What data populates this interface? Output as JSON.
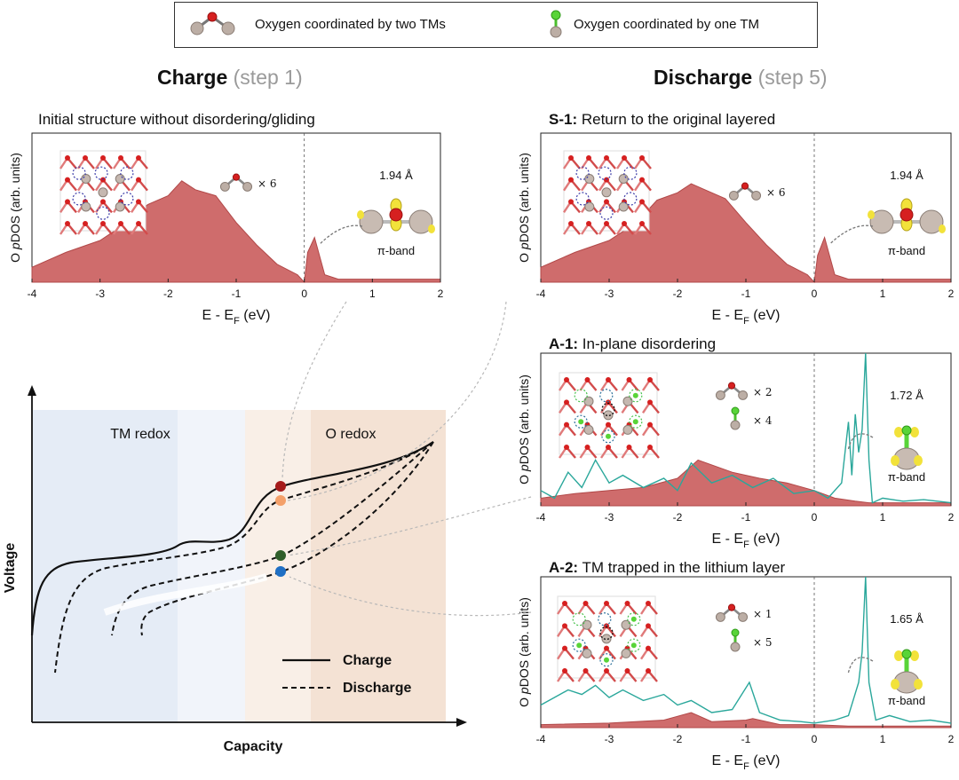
{
  "legend": {
    "item1": "Oxygen coordinated by two TMs",
    "item2": "Oxygen coordinated by one TM"
  },
  "left_heading": {
    "main": "Charge",
    "step": "(step 1)"
  },
  "right_heading": {
    "main": "Discharge",
    "step": "(step 5)"
  },
  "panel_initial": {
    "title": "Initial structure without disordering/gliding",
    "bond": "1.94 Å",
    "band": "π-band",
    "mult1": "× 6"
  },
  "panel_s1": {
    "tag": "S-1:",
    "title": " Return to the original layered",
    "bond": "1.94 Å",
    "band": "π-band",
    "mult1": "× 6"
  },
  "panel_a1": {
    "tag": "A-1:",
    "title": " In-plane disordering",
    "bond": "1.72 Å",
    "band": "π-band",
    "mult1": "× 2",
    "mult2": "× 4"
  },
  "panel_a2": {
    "tag": "A-2:",
    "title": " TM trapped in the lithium layer",
    "bond": "1.65 Å",
    "band": "π-band",
    "mult1": "× 1",
    "mult2": "× 5"
  },
  "axis": {
    "ylabel_pre": "O ",
    "ylabel_it": "p",
    "ylabel_post": "DOS (arb. units)",
    "xlabel_pre": "E - E",
    "xlabel_sub": "F",
    "xlabel_post": " (eV)",
    "ticks": [
      "-4",
      "-3",
      "-2",
      "-1",
      "0",
      "1",
      "2"
    ]
  },
  "voltage_plot": {
    "ylabel": "Voltage",
    "xlabel": "Capacity",
    "region_left": "TM redox",
    "region_right": "O redox",
    "legend_charge": "Charge",
    "legend_discharge": "Discharge"
  },
  "colors": {
    "dos_fill": "#cf6c6c",
    "dos_stroke": "#b14848",
    "teal_line": "#2aa79b",
    "marker_red": "#a51b1b",
    "marker_orange": "#f4a06a",
    "marker_green": "#2f5e2a",
    "marker_blue": "#1f6fc4",
    "region_left": "#e5ecf6",
    "region_right": "#f4e2d4"
  },
  "chart_data": [
    {
      "type": "area",
      "title": "Initial structure without disordering/gliding",
      "xlabel": "E - EF (eV)",
      "ylabel": "O pDOS (arb. units)",
      "xlim": [
        -4,
        2
      ],
      "series": [
        {
          "name": "O pDOS",
          "x": [
            -4,
            -3.5,
            -3,
            -2.6,
            -2.3,
            -2,
            -1.8,
            -1.6,
            -1.3,
            -1.0,
            -0.7,
            -0.4,
            -0.1,
            0,
            0.05,
            0.15,
            0.3,
            0.5,
            1,
            1.5,
            2
          ],
          "values": [
            0.1,
            0.2,
            0.28,
            0.4,
            0.52,
            0.58,
            0.68,
            0.62,
            0.58,
            0.4,
            0.25,
            0.12,
            0.05,
            0.0,
            0.2,
            0.3,
            0.05,
            0.02,
            0.02,
            0.02,
            0.02
          ]
        }
      ]
    },
    {
      "type": "area",
      "title": "S-1: Return to the original layered",
      "xlabel": "E - EF (eV)",
      "ylabel": "O pDOS (arb. units)",
      "xlim": [
        -4,
        2
      ],
      "series": [
        {
          "name": "O pDOS",
          "x": [
            -4,
            -3.5,
            -3,
            -2.6,
            -2.3,
            -2,
            -1.8,
            -1.6,
            -1.3,
            -1.0,
            -0.7,
            -0.4,
            -0.1,
            0,
            0.05,
            0.15,
            0.3,
            0.5,
            1,
            1.5,
            2
          ],
          "values": [
            0.1,
            0.2,
            0.28,
            0.4,
            0.55,
            0.6,
            0.66,
            0.62,
            0.56,
            0.4,
            0.25,
            0.12,
            0.05,
            0.0,
            0.18,
            0.3,
            0.05,
            0.02,
            0.02,
            0.02,
            0.02
          ]
        }
      ]
    },
    {
      "type": "line",
      "title": "A-1: In-plane disordering",
      "xlabel": "E - EF (eV)",
      "ylabel": "O pDOS (arb. units)",
      "xlim": [
        -4,
        2
      ],
      "series": [
        {
          "name": "two-TM O",
          "x": [
            -4,
            -3.5,
            -3,
            -2.5,
            -2,
            -1.7,
            -1.2,
            -0.8,
            -0.4,
            0,
            0.3,
            0.6,
            0.8,
            1,
            1.5,
            2
          ],
          "values": [
            0.05,
            0.08,
            0.1,
            0.12,
            0.18,
            0.3,
            0.22,
            0.18,
            0.15,
            0.1,
            0.05,
            0.03,
            0.02,
            0.02,
            0.02,
            0.02
          ]
        },
        {
          "name": "one-TM O",
          "x": [
            -4,
            -3.8,
            -3.6,
            -3.4,
            -3.2,
            -3.0,
            -2.8,
            -2.5,
            -2.2,
            -2.0,
            -1.8,
            -1.5,
            -1.2,
            -0.9,
            -0.6,
            -0.3,
            0,
            0.2,
            0.4,
            0.5,
            0.55,
            0.6,
            0.65,
            0.7,
            0.75,
            0.8,
            0.85,
            1.0,
            1.3,
            1.6,
            2
          ],
          "values": [
            0.1,
            0.05,
            0.22,
            0.12,
            0.3,
            0.15,
            0.2,
            0.12,
            0.18,
            0.1,
            0.28,
            0.15,
            0.2,
            0.12,
            0.18,
            0.08,
            0.1,
            0.05,
            0.15,
            0.55,
            0.2,
            0.6,
            0.35,
            0.5,
            1.0,
            0.3,
            0.02,
            0.05,
            0.03,
            0.04,
            0.02
          ]
        }
      ]
    },
    {
      "type": "line",
      "title": "A-2: TM trapped in the lithium layer",
      "xlabel": "E - EF (eV)",
      "ylabel": "O pDOS (arb. units)",
      "xlim": [
        -4,
        2
      ],
      "series": [
        {
          "name": "two-TM O",
          "x": [
            -4,
            -3,
            -2.2,
            -1.8,
            -1.5,
            -1,
            -0.9,
            -0.5,
            0,
            0.5,
            1,
            2
          ],
          "values": [
            0.02,
            0.03,
            0.05,
            0.1,
            0.04,
            0.05,
            0.06,
            0.02,
            0.02,
            0.01,
            0.01,
            0.01
          ]
        },
        {
          "name": "one-TM O",
          "x": [
            -4,
            -3.8,
            -3.6,
            -3.4,
            -3.2,
            -3.0,
            -2.8,
            -2.5,
            -2.2,
            -2.0,
            -1.8,
            -1.5,
            -1.2,
            -0.95,
            -0.8,
            -0.5,
            -0.2,
            0,
            0.3,
            0.5,
            0.65,
            0.7,
            0.75,
            0.8,
            0.9,
            1.1,
            1.4,
            1.7,
            2
          ],
          "values": [
            0.15,
            0.2,
            0.25,
            0.22,
            0.28,
            0.2,
            0.25,
            0.18,
            0.22,
            0.15,
            0.18,
            0.1,
            0.12,
            0.3,
            0.1,
            0.05,
            0.04,
            0.03,
            0.05,
            0.08,
            0.3,
            0.5,
            1.0,
            0.3,
            0.05,
            0.08,
            0.04,
            0.05,
            0.03
          ]
        }
      ]
    },
    {
      "type": "line",
      "title": "",
      "xlabel": "Capacity",
      "ylabel": "Voltage",
      "series": [
        {
          "name": "Charge"
        },
        {
          "name": "Discharge"
        }
      ]
    }
  ]
}
